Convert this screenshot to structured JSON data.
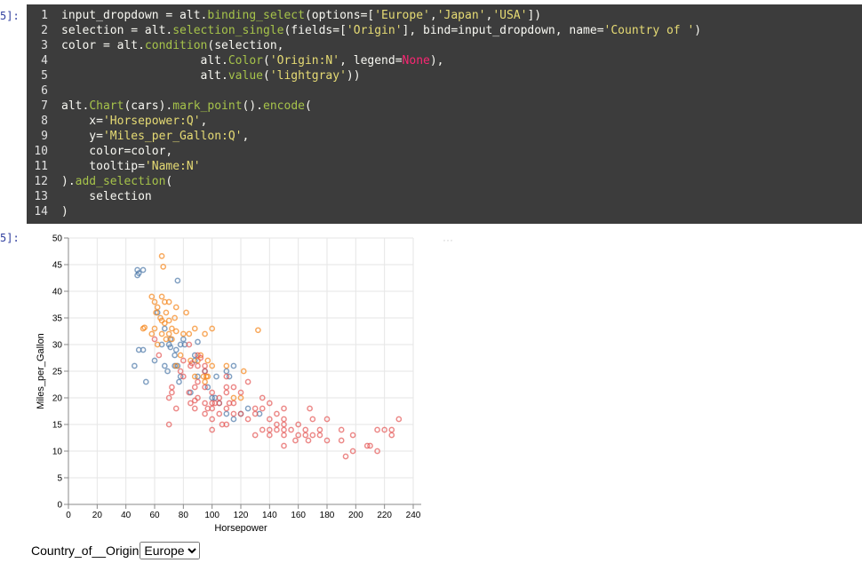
{
  "notebook": {
    "in_prompt": "5]:",
    "out_prompt": "5]:",
    "code": {
      "numbers": [
        1,
        2,
        3,
        4,
        5,
        6,
        7,
        8,
        9,
        10,
        11,
        12,
        13,
        14
      ],
      "lines": [
        [
          {
            "t": "input_dropdown = alt."
          },
          {
            "t": "binding_select",
            "c": "#a6c34a"
          },
          {
            "t": "(options=["
          },
          {
            "t": "'Europe'",
            "c": "#e6db74"
          },
          {
            "t": ","
          },
          {
            "t": "'Japan'",
            "c": "#e6db74"
          },
          {
            "t": ","
          },
          {
            "t": "'USA'",
            "c": "#e6db74"
          },
          {
            "t": "])"
          }
        ],
        [
          {
            "t": "selection = alt."
          },
          {
            "t": "selection_single",
            "c": "#a6c34a"
          },
          {
            "t": "(fields=["
          },
          {
            "t": "'Origin'",
            "c": "#e6db74"
          },
          {
            "t": "], bind=input_dropdown, name="
          },
          {
            "t": "'Country of '",
            "c": "#e6db74"
          },
          {
            "t": ")"
          }
        ],
        [
          {
            "t": "color = alt."
          },
          {
            "t": "condition",
            "c": "#a6c34a"
          },
          {
            "t": "(selection,"
          }
        ],
        [
          {
            "t": "                    alt."
          },
          {
            "t": "Color",
            "c": "#a6c34a"
          },
          {
            "t": "("
          },
          {
            "t": "'Origin:N'",
            "c": "#e6db74"
          },
          {
            "t": ", legend="
          },
          {
            "t": "None",
            "c": "#f92672"
          },
          {
            "t": "),"
          }
        ],
        [
          {
            "t": "                    alt."
          },
          {
            "t": "value",
            "c": "#a6c34a"
          },
          {
            "t": "("
          },
          {
            "t": "'lightgray'",
            "c": "#e6db74"
          },
          {
            "t": "))"
          }
        ],
        [],
        [
          {
            "t": "alt."
          },
          {
            "t": "Chart",
            "c": "#a6c34a"
          },
          {
            "t": "(cars)."
          },
          {
            "t": "mark_point",
            "c": "#a6c34a"
          },
          {
            "t": "()."
          },
          {
            "t": "encode",
            "c": "#a6c34a"
          },
          {
            "t": "("
          }
        ],
        [
          {
            "t": "    x="
          },
          {
            "t": "'Horsepower:Q'",
            "c": "#e6db74"
          },
          {
            "t": ","
          }
        ],
        [
          {
            "t": "    y="
          },
          {
            "t": "'Miles_per_Gallon:Q'",
            "c": "#e6db74"
          },
          {
            "t": ","
          }
        ],
        [
          {
            "t": "    color=color,"
          }
        ],
        [
          {
            "t": "    tooltip="
          },
          {
            "t": "'Name:N'",
            "c": "#e6db74"
          }
        ],
        [
          {
            "t": ")."
          },
          {
            "t": "add_selection",
            "c": "#a6c34a"
          },
          {
            "t": "("
          }
        ],
        [
          {
            "t": "    selection"
          }
        ],
        [
          {
            "t": ")"
          }
        ]
      ]
    },
    "control": {
      "label": "Country_of__Origin",
      "selected": "Europe"
    }
  },
  "chart_data": {
    "type": "scatter",
    "x_label": "Horsepower",
    "y_label": "Miles_per_Gallon",
    "xlim": [
      0,
      240
    ],
    "ylim": [
      0,
      50
    ],
    "xticks": [
      0,
      20,
      40,
      60,
      80,
      100,
      120,
      140,
      160,
      180,
      200,
      220,
      240
    ],
    "yticks": [
      0,
      5,
      10,
      15,
      20,
      25,
      30,
      35,
      40,
      45,
      50
    ],
    "grid": true,
    "series": [
      {
        "color": "#4c78a8",
        "x": [
          46,
          48,
          48,
          49,
          52,
          49,
          52,
          54,
          60,
          67,
          70,
          71,
          74,
          75,
          76,
          78,
          80,
          81,
          71,
          74,
          78,
          88,
          90,
          95,
          97,
          100,
          102,
          103,
          110,
          112,
          115,
          120,
          125,
          133,
          76,
          69,
          65,
          62,
          88,
          90,
          85,
          77,
          67,
          105,
          110,
          115
        ],
        "values": [
          26,
          43,
          44,
          43.4,
          44,
          29,
          29,
          23,
          27,
          26,
          30,
          31,
          28,
          29,
          26,
          30,
          31,
          30,
          29.5,
          26,
          24,
          27,
          24,
          25,
          22,
          20,
          20,
          24,
          25,
          24,
          26,
          17,
          18,
          17,
          42,
          25,
          30,
          36,
          28,
          30.5,
          21,
          23,
          33,
          19,
          17,
          16
        ]
      },
      {
        "color": "#f58518",
        "x": [
          65,
          66,
          52,
          53,
          58,
          60,
          61,
          62,
          64,
          65,
          65,
          67,
          67,
          68,
          68,
          70,
          70,
          72,
          72,
          75,
          75,
          78,
          80,
          82,
          84,
          85,
          88,
          88,
          90,
          92,
          94,
          95,
          95,
          97,
          97,
          100,
          100,
          110,
          115,
          120,
          122,
          132,
          60,
          58,
          62,
          65,
          70,
          74,
          75,
          96
        ],
        "values": [
          46.6,
          44.6,
          33,
          33.2,
          39,
          38,
          36,
          37,
          35,
          39,
          32,
          34,
          38,
          31,
          36,
          34.5,
          32,
          33,
          31,
          37,
          32.5,
          28,
          32,
          36,
          32,
          27,
          24,
          33,
          27,
          28,
          24,
          23,
          32,
          27,
          24,
          26,
          33,
          26,
          20,
          20,
          25,
          32.7,
          33,
          32,
          30,
          34.5,
          38,
          35,
          26,
          24
        ]
      },
      {
        "color": "#e45756",
        "x": [
          60,
          63,
          70,
          72,
          72,
          75,
          78,
          80,
          84,
          85,
          85,
          88,
          88,
          90,
          90,
          90,
          95,
          95,
          95,
          97,
          100,
          100,
          100,
          100,
          105,
          105,
          105,
          110,
          110,
          110,
          110,
          112,
          115,
          115,
          115,
          120,
          120,
          125,
          125,
          130,
          130,
          135,
          135,
          140,
          140,
          140,
          140,
          145,
          145,
          145,
          150,
          150,
          150,
          150,
          150,
          150,
          155,
          158,
          160,
          160,
          165,
          165,
          167,
          170,
          170,
          175,
          175,
          180,
          180,
          190,
          190,
          193,
          198,
          198,
          208,
          210,
          215,
          215,
          220,
          225,
          225,
          230,
          168,
          84,
          86,
          92,
          95,
          130,
          135,
          88,
          102,
          107,
          100,
          70,
          80,
          95,
          90,
          110
        ],
        "values": [
          31,
          28,
          15,
          22,
          21,
          18,
          25,
          27,
          21,
          19,
          26,
          22,
          18,
          20,
          26,
          28,
          19,
          22,
          25,
          18,
          16,
          18,
          19,
          21,
          17,
          19,
          20,
          15,
          18,
          21,
          22,
          19,
          17,
          19,
          22,
          17,
          21,
          16,
          23,
          13,
          17,
          14,
          18,
          13,
          14,
          16,
          19,
          14,
          15,
          17,
          11,
          13,
          14,
          15,
          16,
          18,
          14,
          12,
          13,
          15,
          14,
          13,
          12,
          13,
          16,
          13,
          14,
          12,
          16,
          12,
          14,
          9,
          10,
          13,
          11,
          11,
          10,
          14,
          14,
          13,
          14,
          16,
          18,
          30,
          26.5,
          27.5,
          17,
          18,
          20,
          19.5,
          19,
          15,
          14,
          20,
          24,
          26,
          23,
          24
        ]
      }
    ]
  }
}
